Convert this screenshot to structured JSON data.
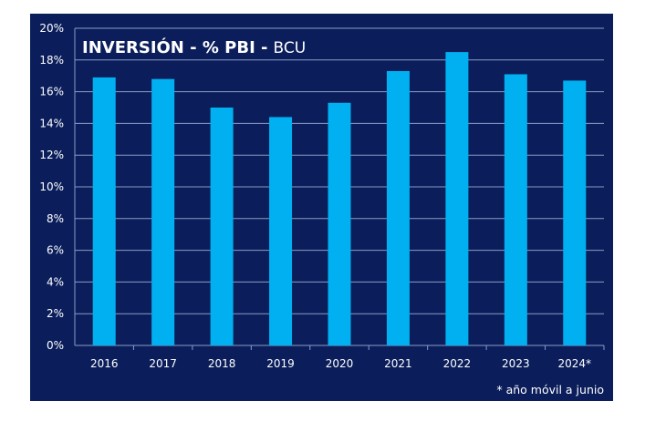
{
  "chart_data": {
    "type": "bar",
    "title": "INVERSIÓN - % PBI -",
    "title_source": "BCU",
    "categories": [
      "2016",
      "2017",
      "2018",
      "2019",
      "2020",
      "2021",
      "2022",
      "2023",
      "2024*"
    ],
    "series": [
      {
        "name": "Inversión % PBI",
        "values": [
          16.9,
          16.8,
          15.0,
          14.4,
          15.3,
          17.3,
          18.5,
          17.1,
          16.7
        ]
      }
    ],
    "xlabel": "",
    "ylabel": "",
    "ylim": [
      0,
      20
    ],
    "yticks": [
      0,
      2,
      4,
      6,
      8,
      10,
      12,
      14,
      16,
      18,
      20
    ],
    "ytick_suffix": "%",
    "grid": true,
    "footnote": "* año móvil a junio",
    "colors": {
      "background": "#0b1e5b",
      "bar": "#00b0f0",
      "grid": "#8a9cc4",
      "text": "#ffffff"
    }
  }
}
